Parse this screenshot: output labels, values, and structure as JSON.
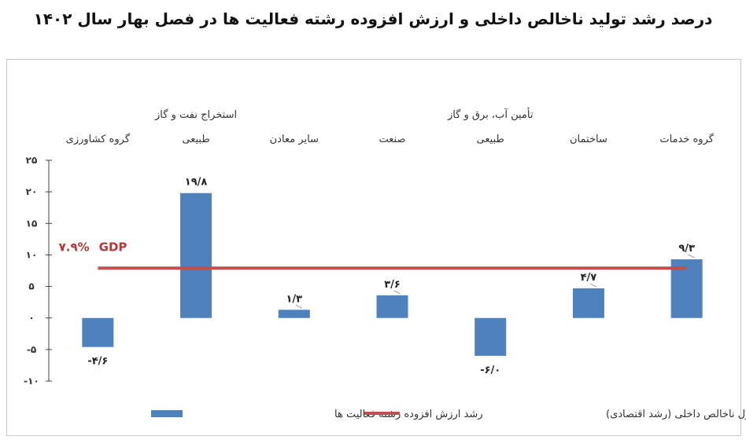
{
  "chart_data": {
    "type": "bar",
    "title": "درصد رشد تولید ناخالص داخلی و ارزش افزوده رشته فعالیت ها در فصل بهار سال ۱۴۰۲",
    "categories": [
      {
        "line1": "",
        "line2": "گروه کشاورزی"
      },
      {
        "line1": "استخراج نفت و گاز",
        "line2": "طبیعی"
      },
      {
        "line1": "",
        "line2": "سایر معادن"
      },
      {
        "line1": "",
        "line2": "صنعت"
      },
      {
        "line1": "تأمین آب، برق و گاز",
        "line2": "طبیعی"
      },
      {
        "line1": "",
        "line2": "ساختمان"
      },
      {
        "line1": "",
        "line2": "گروه خدمات"
      }
    ],
    "series": [
      {
        "name": "رشد ارزش افزوده رشته فعالیت ها",
        "color": "#4f81bd",
        "values": [
          -4.6,
          19.8,
          1.3,
          3.6,
          -6.0,
          4.7,
          9.3
        ],
        "labels": [
          "-۴/۶",
          "۱۹/۸",
          "۱/۳",
          "۳/۶",
          "-۶/۰",
          "۴/۷",
          "۹/۳"
        ]
      },
      {
        "name": "رشد محصول ناخالص داخلی (رشد اقتصادی)",
        "color": "#c0504d",
        "type": "line",
        "value": 7.9
      }
    ],
    "gdp_annotation": {
      "percent": "۷.۹%",
      "code": "GDP"
    },
    "ylim": [
      -10,
      25
    ],
    "yticks": [
      {
        "value": 25,
        "label": "۲۵"
      },
      {
        "value": 20,
        "label": "۲۰"
      },
      {
        "value": 15,
        "label": "۱۵"
      },
      {
        "value": 10,
        "label": "۱۰"
      },
      {
        "value": 5,
        "label": "۵"
      },
      {
        "value": 0,
        "label": "۰"
      },
      {
        "value": -5,
        "label": "-۵"
      },
      {
        "value": -10,
        "label": "-۱۰"
      }
    ],
    "legend_position": "bottom"
  }
}
